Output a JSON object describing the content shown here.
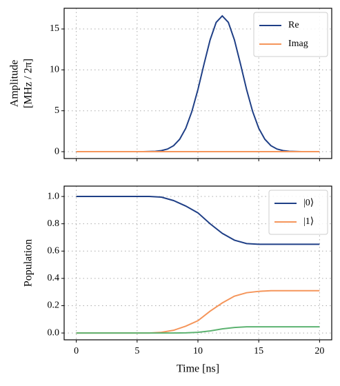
{
  "chart_data": [
    {
      "type": "line",
      "ylabel": [
        "Amplitude",
        "[MHz / 2π]"
      ],
      "x": [
        0,
        0.5,
        1,
        1.5,
        2,
        2.5,
        3,
        3.5,
        4,
        4.5,
        5,
        5.5,
        6,
        6.5,
        7,
        7.5,
        8,
        8.5,
        9,
        9.5,
        10,
        10.5,
        11,
        11.5,
        12,
        12.5,
        13,
        13.5,
        14,
        14.5,
        15,
        15.5,
        16,
        16.5,
        17,
        17.5,
        18,
        18.5,
        19,
        19.5,
        20
      ],
      "series": [
        {
          "name": "Re",
          "color": "#1f3f86",
          "values": [
            0,
            0,
            0,
            0,
            0,
            0,
            0,
            0,
            0,
            0,
            0,
            0,
            0.02,
            0.05,
            0.13,
            0.32,
            0.73,
            1.52,
            2.86,
            4.9,
            7.6,
            10.7,
            13.66,
            15.81,
            16.6,
            15.81,
            13.66,
            10.7,
            7.6,
            4.9,
            2.86,
            1.52,
            0.73,
            0.32,
            0.13,
            0.05,
            0.02,
            0,
            0,
            0,
            0
          ]
        },
        {
          "name": "Imag",
          "color": "#f5955a",
          "values": [
            0,
            0,
            0,
            0,
            0,
            0,
            0,
            0,
            0,
            0,
            0,
            0,
            0,
            0,
            0,
            0,
            0,
            0,
            0,
            0,
            0,
            0,
            0,
            0,
            0,
            0,
            0,
            0,
            0,
            0,
            0,
            0,
            0,
            0,
            0,
            0,
            0,
            0,
            0,
            0,
            0
          ]
        }
      ],
      "xlim": [
        -1,
        21
      ],
      "xticks": [
        0,
        5,
        10,
        15,
        20
      ],
      "ylim": [
        -0.84,
        17.53
      ],
      "yticks": [
        0,
        5,
        10,
        15
      ],
      "grid": true,
      "legend": "upper-right"
    },
    {
      "type": "line",
      "xlabel": "Time [ns]",
      "ylabel": [
        "Population"
      ],
      "x": [
        0,
        1,
        2,
        3,
        4,
        5,
        6,
        7,
        8,
        9,
        10,
        11,
        12,
        13,
        14,
        15,
        16,
        17,
        18,
        19,
        20
      ],
      "series": [
        {
          "name": "|0⟩",
          "color": "#1f3f86",
          "values": [
            1,
            1,
            1,
            1,
            1,
            1,
            1,
            0.995,
            0.97,
            0.93,
            0.88,
            0.8,
            0.73,
            0.68,
            0.655,
            0.65,
            0.65,
            0.65,
            0.65,
            0.65,
            0.65
          ]
        },
        {
          "name": "|1⟩",
          "color": "#f5955a",
          "values": [
            0,
            0,
            0,
            0,
            0,
            0,
            0,
            0.005,
            0.02,
            0.05,
            0.09,
            0.16,
            0.22,
            0.27,
            0.295,
            0.305,
            0.31,
            0.31,
            0.31,
            0.31,
            0.31
          ]
        },
        {
          "color": "#5cb270",
          "values": [
            0,
            0,
            0,
            0,
            0,
            0,
            0,
            0,
            0,
            0.001,
            0.005,
            0.015,
            0.03,
            0.04,
            0.045,
            0.045,
            0.045,
            0.045,
            0.045,
            0.045,
            0.045
          ]
        }
      ],
      "xlim": [
        -1,
        21
      ],
      "xticks": [
        0,
        5,
        10,
        15,
        20
      ],
      "ylim": [
        -0.05,
        1.076
      ],
      "yticks": [
        {
          "value": 0,
          "label": "0.0"
        },
        0.2,
        0.4,
        0.6,
        0.8,
        {
          "value": 1,
          "label": "1.0"
        }
      ],
      "grid": true,
      "legend": "upper-right"
    }
  ]
}
